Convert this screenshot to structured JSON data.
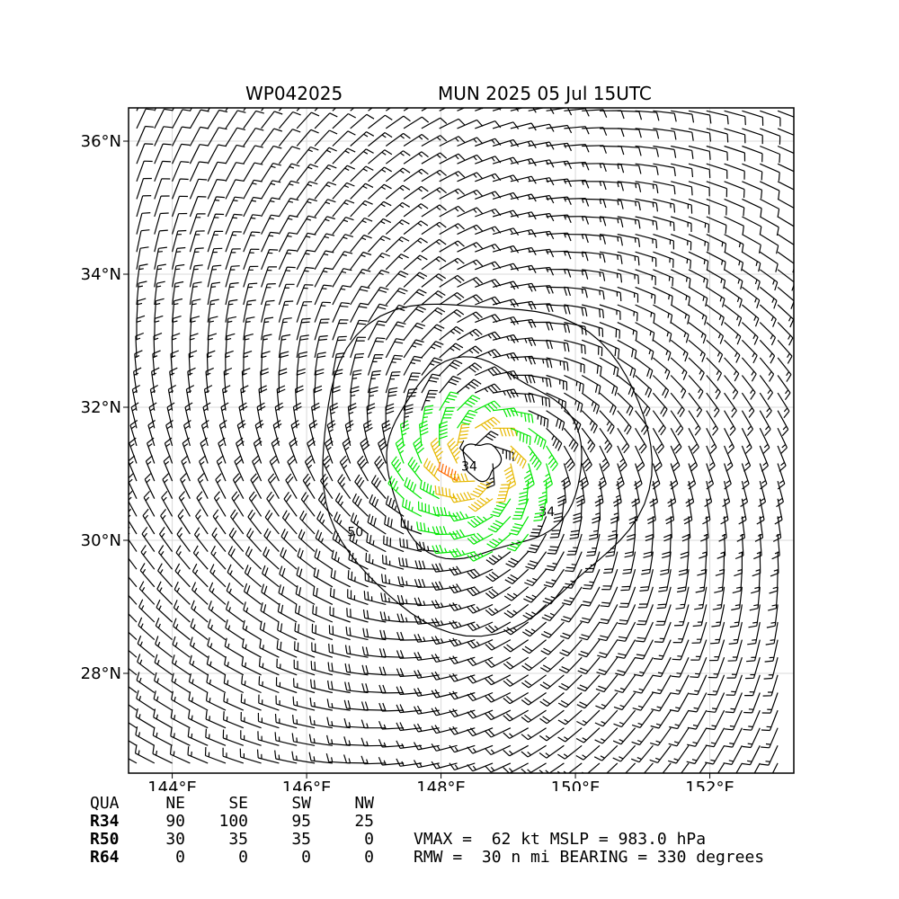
{
  "title": {
    "storm_id": "WP042025",
    "run": "MUN 2025 05 Jul 15UTC"
  },
  "map": {
    "lon_range": [
      143.35,
      153.25
    ],
    "lat_range": [
      26.5,
      36.5
    ],
    "lon_ticks": [
      "144°E",
      "146°E",
      "148°E",
      "150°E",
      "152°E"
    ],
    "lat_ticks": [
      "28°N",
      "30°N",
      "32°N",
      "34°N",
      "36°N"
    ],
    "contour_labels": [
      "34",
      "34",
      "50"
    ],
    "colors": {
      "barb_low": "#000000",
      "barb_34kt": "#00e600",
      "barb_50kt": "#e6b800",
      "barb_64kt": "#ff6600",
      "grid": "#d9d9d9"
    }
  },
  "chart_data": {
    "type": "wind-barb-map",
    "center": {
      "lon": 148.6,
      "lat": 31.2
    },
    "wind_radii": {
      "columns": [
        "QUA",
        "NE",
        "SE",
        "SW",
        "NW"
      ],
      "rows": [
        {
          "label": "R34",
          "values": [
            "90",
            "100",
            "95",
            "25"
          ]
        },
        {
          "label": "R50",
          "values": [
            "30",
            "35",
            "35",
            "0"
          ]
        },
        {
          "label": "R64",
          "values": [
            "0",
            "0",
            "0",
            "0"
          ]
        }
      ]
    },
    "stats": {
      "vmax_line": "VMAX =  62 kt MSLP = 983.0 hPa",
      "rmw_line": "RMW =  30 n mi BEARING = 330 degrees"
    }
  }
}
